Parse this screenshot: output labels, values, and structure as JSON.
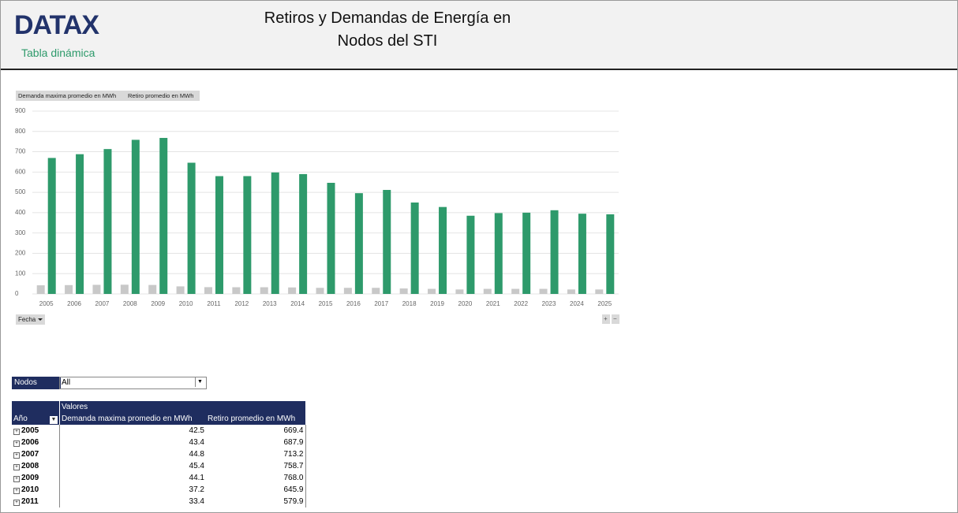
{
  "header": {
    "logo": "DATAX",
    "subtitle": "Tabla dinámica",
    "title_lines": [
      "Retiros y Demandas de Energía en",
      "Nodos del STI"
    ]
  },
  "chart_data": {
    "type": "bar",
    "categories": [
      "2005",
      "2006",
      "2007",
      "2008",
      "2009",
      "2010",
      "2011",
      "2012",
      "2013",
      "2014",
      "2015",
      "2016",
      "2017",
      "2018",
      "2019",
      "2020",
      "2021",
      "2022",
      "2023",
      "2024",
      "2025"
    ],
    "series": [
      {
        "name": "Demanda maxima promedio en MWh",
        "color": "#c8c8c8",
        "values": [
          42.5,
          43.4,
          44.8,
          45.4,
          44.1,
          37.2,
          33.4,
          33,
          33,
          32,
          30,
          30,
          30,
          27,
          25,
          22,
          25,
          25,
          25,
          22,
          22
        ]
      },
      {
        "name": "Retiro promedio en MWh",
        "color": "#2e9a6b",
        "values": [
          669.4,
          687.9,
          713.2,
          758.7,
          768.0,
          645.9,
          579.9,
          580,
          598,
          590,
          547,
          496,
          512,
          450,
          428,
          385,
          398,
          400,
          412,
          395,
          392
        ]
      }
    ],
    "ylim": [
      0,
      900
    ],
    "yticks": [
      0,
      100,
      200,
      300,
      400,
      500,
      600,
      700,
      800,
      900
    ],
    "grid": true,
    "axis_button": "Fecha"
  },
  "filter": {
    "label": "Nodos",
    "value": "All"
  },
  "table": {
    "group_header": "Valores",
    "columns": [
      "Año",
      "Demanda maxima promedio en MWh",
      "Retiro promedio en MWh"
    ],
    "rows": [
      [
        "2005",
        "42.5",
        "669.4"
      ],
      [
        "2006",
        "43.4",
        "687.9"
      ],
      [
        "2007",
        "44.8",
        "713.2"
      ],
      [
        "2008",
        "45.4",
        "758.7"
      ],
      [
        "2009",
        "44.1",
        "768.0"
      ],
      [
        "2010",
        "37.2",
        "645.9"
      ],
      [
        "2011",
        "33.4",
        "579.9"
      ]
    ]
  }
}
